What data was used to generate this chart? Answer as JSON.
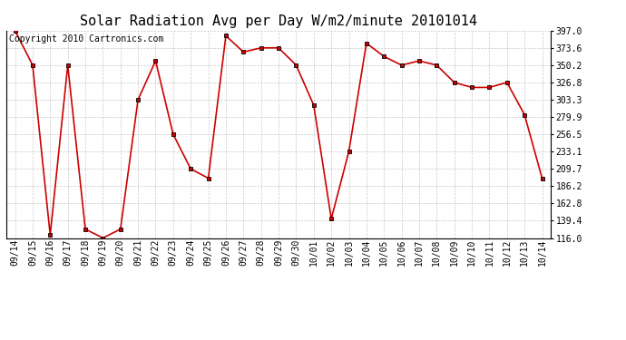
{
  "title": "Solar Radiation Avg per Day W/m2/minute 20101014",
  "copyright": "Copyright 2010 Cartronics.com",
  "dates": [
    "09/14",
    "09/15",
    "09/16",
    "09/17",
    "09/18",
    "09/19",
    "09/20",
    "09/21",
    "09/22",
    "09/23",
    "09/24",
    "09/25",
    "09/26",
    "09/27",
    "09/28",
    "09/29",
    "09/30",
    "10/01",
    "10/02",
    "10/03",
    "10/04",
    "10/05",
    "10/06",
    "10/07",
    "10/08",
    "10/09",
    "10/10",
    "10/11",
    "10/12",
    "10/13",
    "10/14"
  ],
  "values": [
    397.0,
    350.2,
    120.0,
    350.2,
    128.0,
    116.0,
    128.0,
    303.3,
    356.0,
    256.5,
    209.7,
    197.0,
    390.0,
    368.0,
    373.6,
    373.6,
    350.2,
    296.0,
    142.0,
    233.1,
    380.0,
    362.0,
    350.2,
    356.0,
    350.2,
    326.8,
    320.0,
    320.0,
    326.8,
    283.0,
    197.0
  ],
  "ymin": 116.0,
  "ymax": 397.0,
  "yticks": [
    116.0,
    139.4,
    162.8,
    186.2,
    209.7,
    233.1,
    256.5,
    279.9,
    303.3,
    326.8,
    350.2,
    373.6,
    397.0
  ],
  "line_color": "#cc0000",
  "marker_color": "#000000",
  "bg_color": "#ffffff",
  "grid_color": "#bbbbbb",
  "title_fontsize": 11,
  "copyright_fontsize": 7,
  "tick_fontsize": 7,
  "ytick_fontsize": 7
}
